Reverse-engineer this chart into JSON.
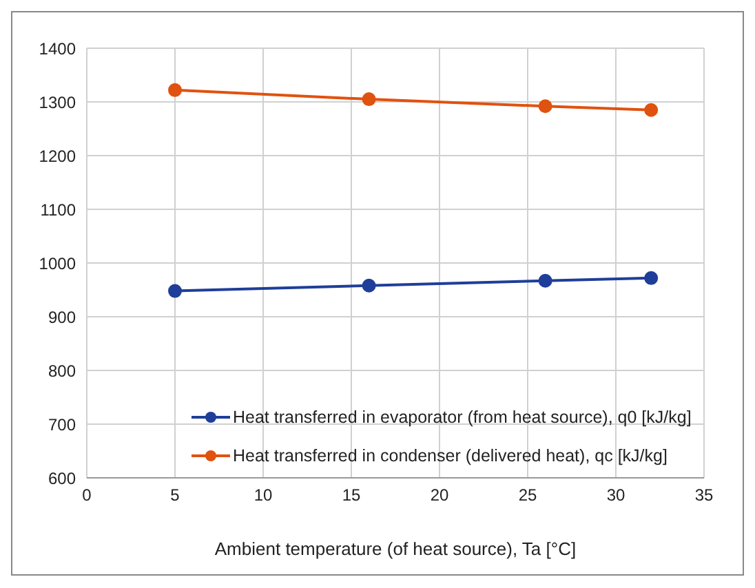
{
  "chart_data": {
    "type": "line",
    "xlabel": "Ambient temperature (of heat source), Ta [°C]",
    "x": [
      5,
      16,
      26,
      32
    ],
    "series": [
      {
        "name": "Heat transferred in evaporator (from heat source), q0 [kJ/kg]",
        "color": "#1f3e9a",
        "values": [
          948,
          958,
          967,
          972
        ]
      },
      {
        "name": "Heat transferred in condenser (delivered heat),  qc [kJ/kg]",
        "color": "#e0520f",
        "values": [
          1322,
          1305,
          1292,
          1285
        ]
      }
    ],
    "xlim": [
      0,
      35
    ],
    "xticks": [
      0,
      5,
      10,
      15,
      20,
      25,
      30,
      35
    ],
    "ylim": [
      600,
      1400
    ],
    "yticks": [
      600,
      700,
      800,
      900,
      1000,
      1100,
      1200,
      1300,
      1400
    ],
    "grid": true,
    "legend": "bottom",
    "marker": "circle",
    "line_style": "solid"
  }
}
